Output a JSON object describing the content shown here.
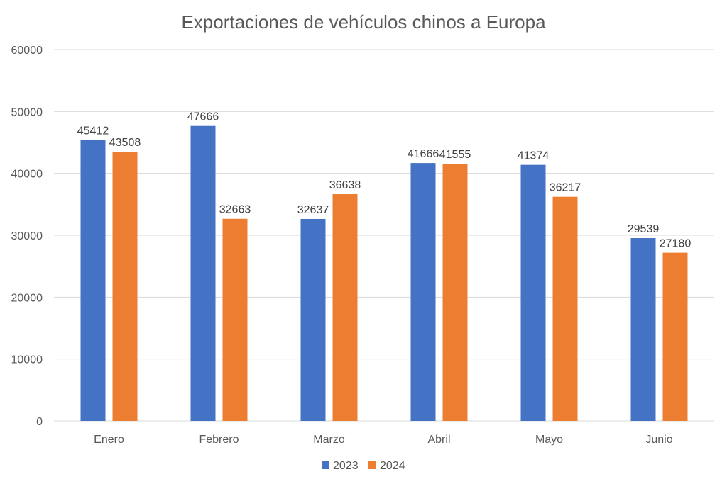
{
  "chart_data": {
    "type": "bar",
    "title": "Exportaciones de vehículos chinos a Europa",
    "xlabel": "",
    "ylabel": "",
    "categories": [
      "Enero",
      "Febrero",
      "Marzo",
      "Abril",
      "Mayo",
      "Junio"
    ],
    "series": [
      {
        "name": "2023",
        "color": "#4472C4",
        "values": [
          45412,
          47666,
          32637,
          41666,
          41374,
          29539
        ]
      },
      {
        "name": "2024",
        "color": "#ED7D31",
        "values": [
          43508,
          32663,
          36638,
          41555,
          36217,
          27180
        ]
      }
    ],
    "ylim": [
      0,
      60000
    ],
    "yticks": [
      0,
      10000,
      20000,
      30000,
      40000,
      50000,
      60000
    ],
    "grid": true,
    "legend_position": "bottom",
    "data_labels": true
  }
}
